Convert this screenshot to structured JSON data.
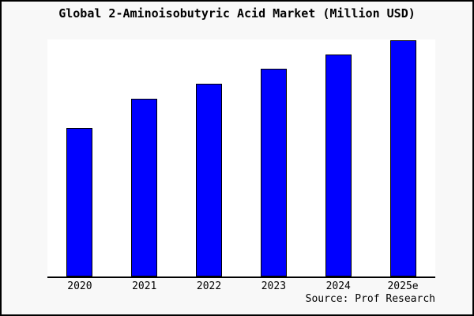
{
  "chart": {
    "title": "Global 2-Aminoisobutyric Acid Market (Million USD)",
    "source": "Source: Prof Research"
  },
  "colors": {
    "bar_fill": "#0000ff",
    "bar_border": "#000000",
    "figure_background": "#f8f8f8",
    "plot_background": "#ffffff",
    "axis_line": "#000000",
    "frame_border": "#000000",
    "text": "#000000"
  },
  "chart_data": {
    "type": "bar",
    "title": "Global 2-Aminoisobutyric Acid Market (Million USD)",
    "categories": [
      "2020",
      "2021",
      "2022",
      "2023",
      "2024",
      "2025e"
    ],
    "values": [
      62.7,
      75.0,
      81.3,
      87.7,
      93.7,
      99.7
    ],
    "values_note": "No y-axis ticks, labels or gridlines are shown in the chart; values are relative bar heights expressed as percent of the plot height.",
    "xlabel": "",
    "ylabel": "",
    "ylim": [
      0,
      100
    ],
    "grid": false,
    "legend": false,
    "annotations": [
      "Source: Prof Research"
    ]
  }
}
